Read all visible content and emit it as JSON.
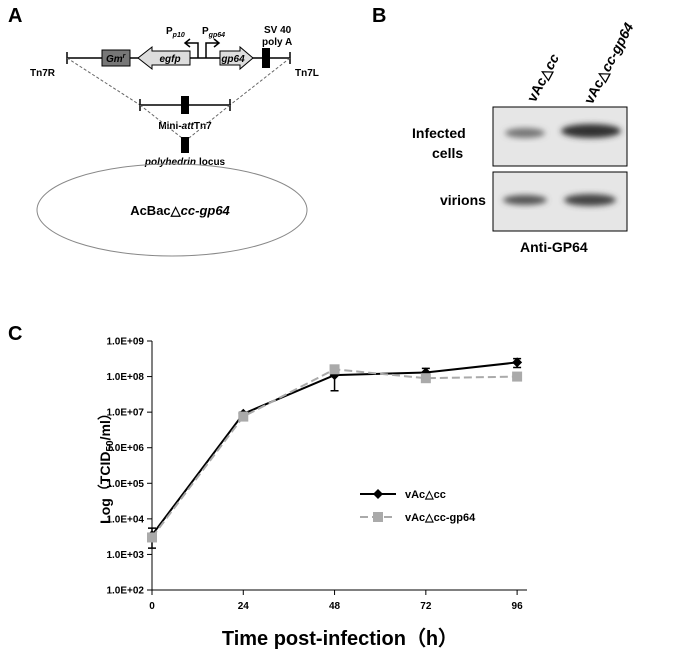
{
  "panel_a": {
    "label": "A",
    "promoter_p10": {
      "p": "P",
      "sub": "p10"
    },
    "promoter_gp64": {
      "p": "P",
      "sub": "gp64"
    },
    "sv40": [
      "SV 40",
      "poly A"
    ],
    "gm": {
      "main": "Gm",
      "sup": "r"
    },
    "egfp": "egfp",
    "gp64": "gp64",
    "tn7r": "Tn7R",
    "tn7l": "Tn7L",
    "mini": {
      "pre": "Mini-",
      "italic": "att",
      "post": "Tn7"
    },
    "locus": {
      "italic": "polyhedrin",
      "post": "locus"
    },
    "strain": {
      "pre": "AcBac△",
      "italic": "cc-gp64"
    }
  },
  "panel_b": {
    "label": "B",
    "lanes": [
      {
        "pre": "vAc△",
        "italic": "cc"
      },
      {
        "pre": "vAc△",
        "italic": "cc-gp64"
      }
    ],
    "row_infected": [
      "Infected",
      "cells"
    ],
    "row_virions": "virions",
    "antibody": "Anti-GP64"
  },
  "panel_c_label": "C",
  "chart_data": {
    "type": "line",
    "log_scale_y": true,
    "x_label": "Time post-infection（h）",
    "y_label": {
      "before": "Log（TCID",
      "sub": "50",
      "after": "/ml）"
    },
    "x": [
      0,
      24,
      48,
      72,
      96
    ],
    "xlim": [
      0,
      98.6
    ],
    "xticks": [
      0,
      24,
      48,
      72,
      96
    ],
    "ylim": [
      100,
      1000000000
    ],
    "yticks": [
      {
        "value": 100,
        "label": "1.0E+02"
      },
      {
        "value": 1000,
        "label": "1.0E+03"
      },
      {
        "value": 10000,
        "label": "1.0E+04"
      },
      {
        "value": 100000,
        "label": "1.0E+05"
      },
      {
        "value": 1000000,
        "label": "1.0E+06"
      },
      {
        "value": 10000000,
        "label": "1.0E+07"
      },
      {
        "value": 100000000,
        "label": "1.0E+08"
      },
      {
        "value": 1000000000,
        "label": "1.0E+09"
      }
    ],
    "legend": "right",
    "series": [
      {
        "name": "vAc△cc",
        "color": "#000000",
        "marker": "diamond",
        "dashed": false,
        "values": [
          3500,
          9000000,
          110000000,
          130000000,
          250000000
        ],
        "errors": [
          2000,
          1000000,
          70000000,
          40000000,
          70000000
        ]
      },
      {
        "name": "vAc△cc-gp64",
        "color": "#aaaaaa",
        "marker": "square",
        "dashed": true,
        "values": [
          3000,
          7500000,
          160000000,
          90000000,
          100000000
        ]
      }
    ]
  }
}
